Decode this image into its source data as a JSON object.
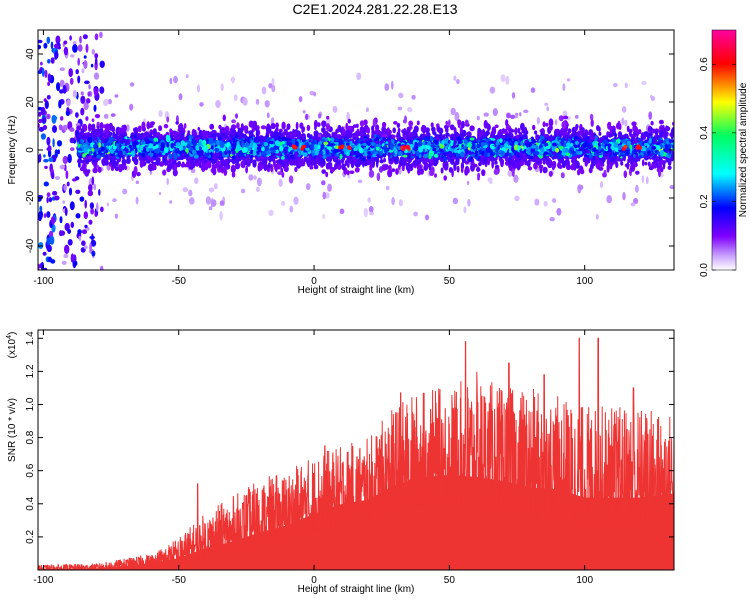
{
  "title": "C2E1.2024.281.22.28.E13",
  "chart_data": [
    {
      "type": "heatmap",
      "xlabel": "Height of straight line (km)",
      "ylabel": "Frequency (Hz)",
      "xlim": [
        -102,
        133
      ],
      "ylim": [
        -50,
        50
      ],
      "x_ticks": [
        "-100",
        "-50",
        "0",
        "50",
        "100"
      ],
      "y_ticks": [
        "-40",
        "-20",
        "0",
        "20",
        "40"
      ],
      "colorbar": {
        "label": "Normalized spectral amplitude",
        "range": [
          0,
          0.7
        ],
        "ticks": [
          "0.0",
          "0.2",
          "0.4",
          "0.6"
        ],
        "colormap": [
          "#ffffff",
          "#7f00ff",
          "#0000ff",
          "#00ffff",
          "#00ff00",
          "#ffff00",
          "#ff0000",
          "#ff0080"
        ]
      },
      "features": {
        "noise_region_end_km": -78,
        "band_center_hz": 1,
        "band_halfwidth_hz": 6,
        "band_start_km": -87
      }
    },
    {
      "type": "line",
      "xlabel": "Height of straight line (km)",
      "ylabel": "SNR (10 * v/v)",
      "scale_label": "(x10",
      "scale_exp": "4",
      "scale_close": ")",
      "xlim": [
        -102,
        133
      ],
      "ylim": [
        0,
        1.45
      ],
      "x_ticks": [
        "-100",
        "-50",
        "0",
        "50",
        "100"
      ],
      "y_ticks": [
        "0.2",
        "0.4",
        "0.6",
        "0.8",
        "1.0",
        "1.2",
        "1.4"
      ],
      "color": "#ee3333",
      "envelope": {
        "x": [
          -102,
          -80,
          -60,
          -50,
          -40,
          -30,
          -20,
          -10,
          0,
          10,
          20,
          30,
          40,
          50,
          60,
          70,
          80,
          90,
          100,
          110,
          120,
          133
        ],
        "low": [
          0.0,
          0.0,
          0.02,
          0.03,
          0.06,
          0.08,
          0.12,
          0.16,
          0.22,
          0.28,
          0.3,
          0.35,
          0.38,
          0.4,
          0.35,
          0.35,
          0.3,
          0.3,
          0.25,
          0.25,
          0.25,
          0.3
        ],
        "high": [
          0.03,
          0.04,
          0.1,
          0.2,
          0.35,
          0.45,
          0.55,
          0.6,
          0.7,
          0.75,
          0.8,
          1.0,
          1.1,
          1.1,
          1.2,
          1.1,
          1.1,
          1.05,
          1.0,
          1.0,
          1.0,
          0.95
        ],
        "spikes": [
          {
            "x": -43,
            "y": 0.52
          },
          {
            "x": 4,
            "y": 0.75
          },
          {
            "x": 32,
            "y": 1.07
          },
          {
            "x": 56,
            "y": 1.38
          },
          {
            "x": 72,
            "y": 1.25
          },
          {
            "x": 85,
            "y": 1.18
          },
          {
            "x": 98,
            "y": 1.4
          },
          {
            "x": 105,
            "y": 1.4
          },
          {
            "x": 118,
            "y": 1.1
          }
        ]
      }
    }
  ]
}
